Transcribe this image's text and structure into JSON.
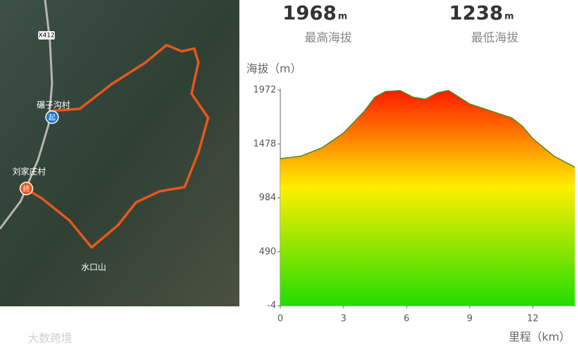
{
  "stats": {
    "max_value": "1968",
    "max_unit": "m",
    "max_label": "最高海拔",
    "min_value": "1238",
    "min_unit": "m",
    "min_label": "最低海拔"
  },
  "map": {
    "road": "X412",
    "start_village": "碾子沟村",
    "start_marker": "起",
    "end_village": "刘家庄村",
    "end_marker": "终",
    "peak": "水口山"
  },
  "watermark": "大数跨境",
  "chart_data": {
    "type": "area",
    "y_label": "海拔（m）",
    "x_label": "里程（km）",
    "x": [
      0,
      1,
      2,
      3,
      4,
      4.5,
      5,
      5.7,
      6.3,
      6.9,
      7.5,
      8,
      9,
      10,
      11,
      11.5,
      12,
      13,
      14
    ],
    "values": [
      1343,
      1368,
      1445,
      1578,
      1781,
      1908,
      1959,
      1968,
      1908,
      1889,
      1950,
      1968,
      1845,
      1781,
      1718,
      1642,
      1527,
      1368,
      1265
    ],
    "color": "#4f8a1e",
    "fill_colors": [
      "#ff1a00",
      "#ffee00",
      "#22dd00"
    ],
    "xlim": [
      0,
      14.05
    ],
    "xticks": [
      0,
      3,
      6,
      9,
      12
    ],
    "ylim": [
      -4,
      1972
    ],
    "yticks": [
      -4,
      490,
      984,
      1478,
      1972
    ]
  }
}
